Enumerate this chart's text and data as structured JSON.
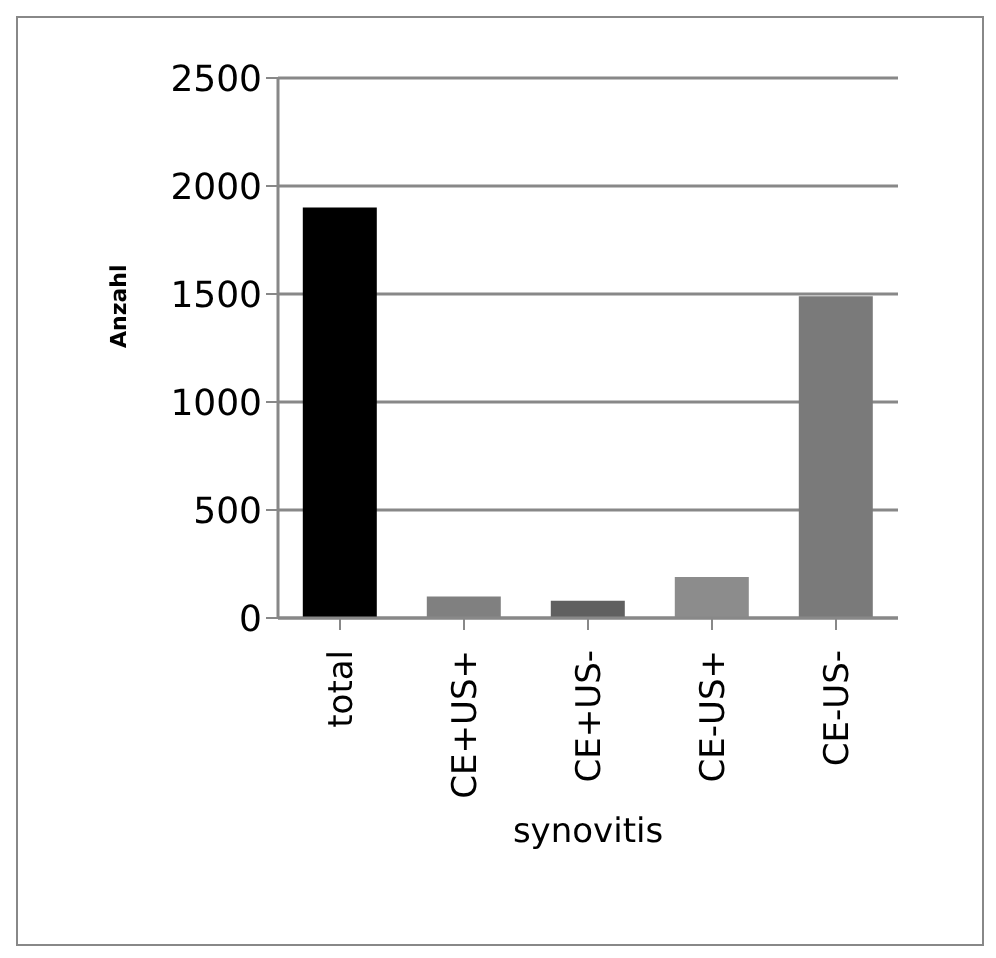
{
  "chart_data": {
    "type": "bar",
    "xlabel": "synovitis",
    "ylabel": "Anzahl",
    "categories": [
      "total",
      "CE+US+",
      "CE+US-",
      "CE-US+",
      "CE-US-"
    ],
    "values": [
      1900,
      100,
      80,
      190,
      1490
    ],
    "colors": [
      "#000000",
      "#808080",
      "#606060",
      "#8c8c8c",
      "#7a7a7a"
    ],
    "ylim": [
      0,
      2500
    ],
    "yticks": [
      0,
      500,
      1000,
      1500,
      2000,
      2500
    ],
    "grid": "y"
  }
}
